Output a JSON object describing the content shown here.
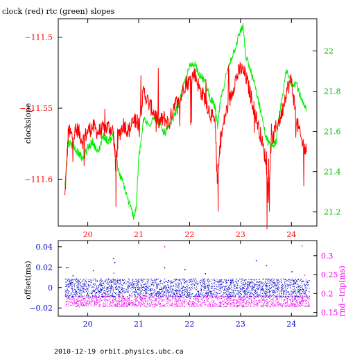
{
  "colors": {
    "clock": "#ff0000",
    "rtc": "#00ee00",
    "offset": "#0000cc",
    "rndtrip": "#ee00ee",
    "axis": "#000000"
  },
  "footer": {
    "text": "2010-12-19  orbit.physics.ubc.ca"
  },
  "chart_data": [
    {
      "type": "line",
      "title": "clock (red) rtc (green) slopes",
      "ylabel": "clockslope",
      "xlabel": "",
      "xlim": [
        19.42,
        24.5
      ],
      "xticks": [
        20,
        21,
        22,
        23,
        24
      ],
      "xtick_labels": [
        "20",
        "21",
        "22",
        "23",
        "24"
      ],
      "grid": false,
      "y_left": {
        "ylim": [
          -111.633,
          -111.487
        ],
        "ticks": [
          -111.5,
          -111.55,
          -111.6
        ],
        "tick_labels": [
          "−111.5",
          "−111.55",
          "−111.6"
        ]
      },
      "y_right": {
        "ylim": [
          21.13,
          22.16
        ],
        "ticks": [
          22,
          21.8,
          21.6,
          21.4,
          21.2
        ],
        "tick_labels": [
          "22",
          "21.8",
          "21.6",
          "21.4",
          "21.2"
        ]
      },
      "series": [
        {
          "color_key": "clock",
          "axis": "left",
          "x": [
            19.55,
            19.62,
            19.7,
            19.8,
            19.9,
            20.0,
            20.1,
            20.2,
            20.3,
            20.4,
            20.5,
            20.55,
            20.6,
            20.7,
            20.8,
            20.9,
            20.95,
            21.0,
            21.1,
            21.2,
            21.3,
            21.4,
            21.5,
            21.6,
            21.7,
            21.8,
            21.9,
            22.0,
            22.1,
            22.2,
            22.3,
            22.4,
            22.5,
            22.55,
            22.6,
            22.7,
            22.8,
            22.9,
            23.0,
            23.1,
            23.2,
            23.3,
            23.4,
            23.5,
            23.55,
            23.6,
            23.7,
            23.8,
            23.9,
            24.0,
            24.1,
            24.2,
            24.3
          ],
          "values": [
            -111.613,
            -111.566,
            -111.57,
            -111.565,
            -111.573,
            -111.566,
            -111.563,
            -111.567,
            -111.565,
            -111.563,
            -111.566,
            -111.591,
            -111.57,
            -111.561,
            -111.566,
            -111.56,
            -111.558,
            -111.561,
            -111.538,
            -111.547,
            -111.553,
            -111.56,
            -111.557,
            -111.561,
            -111.546,
            -111.547,
            -111.533,
            -111.531,
            -111.525,
            -111.537,
            -111.543,
            -111.553,
            -111.561,
            -111.604,
            -111.575,
            -111.555,
            -111.543,
            -111.53,
            -111.522,
            -111.527,
            -111.541,
            -111.555,
            -111.57,
            -111.587,
            -111.615,
            -111.576,
            -111.563,
            -111.555,
            -111.538,
            -111.53,
            -111.559,
            -111.573,
            -111.581
          ]
        },
        {
          "color_key": "rtc",
          "axis": "right",
          "x": [
            19.55,
            19.62,
            19.7,
            19.8,
            19.9,
            20.0,
            20.1,
            20.2,
            20.3,
            20.4,
            20.5,
            20.6,
            20.7,
            20.8,
            20.9,
            20.95,
            21.0,
            21.1,
            21.2,
            21.3,
            21.4,
            21.5,
            21.6,
            21.7,
            21.8,
            21.9,
            22.0,
            22.1,
            22.2,
            22.3,
            22.4,
            22.5,
            22.55,
            22.6,
            22.7,
            22.8,
            22.9,
            23.0,
            23.05,
            23.1,
            23.2,
            23.3,
            23.4,
            23.5,
            23.6,
            23.7,
            23.8,
            23.9,
            24.0,
            24.1,
            24.2,
            24.3
          ],
          "values": [
            21.34,
            21.55,
            21.53,
            21.5,
            21.46,
            21.52,
            21.55,
            21.49,
            21.58,
            21.55,
            21.58,
            21.4,
            21.34,
            21.25,
            21.18,
            21.22,
            21.46,
            21.66,
            21.63,
            21.68,
            21.64,
            21.59,
            21.62,
            21.68,
            21.75,
            21.84,
            21.92,
            21.94,
            21.88,
            21.85,
            21.77,
            21.72,
            21.62,
            21.74,
            21.86,
            21.95,
            22.02,
            22.1,
            22.12,
            21.98,
            21.9,
            21.81,
            21.7,
            21.57,
            21.52,
            21.55,
            21.74,
            21.9,
            21.84,
            21.84,
            21.75,
            21.7
          ]
        }
      ]
    },
    {
      "type": "scatter",
      "title": "",
      "xlim": [
        19.42,
        24.5
      ],
      "xticks": [
        20,
        21,
        22,
        23,
        24
      ],
      "xtick_labels": [
        "20",
        "21",
        "22",
        "23",
        "24"
      ],
      "grid": false,
      "y_left": {
        "label": "offset(ms)",
        "ylim": [
          -0.028,
          0.046
        ],
        "ticks": [
          0.04,
          0.02,
          0,
          -0.02
        ],
        "tick_labels": [
          "0.04",
          "0.02",
          "0",
          "−0.02"
        ]
      },
      "y_right": {
        "label": "rnd−trip(ms)",
        "ylim": [
          0.14,
          0.34
        ],
        "ticks": [
          0.3,
          0.25,
          0.2,
          0.15
        ],
        "tick_labels": [
          "0.3",
          "0.25",
          "0.2",
          "0.15"
        ]
      },
      "series": [
        {
          "color_key": "offset",
          "axis": "left",
          "x_range": [
            19.55,
            24.35
          ],
          "band": [
            -0.009,
            0.009
          ],
          "outliers": [
            [
              19.57,
              0.02
            ],
            [
              19.7,
              0.012
            ],
            [
              20.5,
              0.029
            ],
            [
              20.52,
              0.025
            ],
            [
              20.1,
              0.017
            ],
            [
              21.5,
              0.02
            ],
            [
              21.9,
              0.018
            ],
            [
              22.3,
              0.014
            ],
            [
              23.3,
              0.027
            ],
            [
              23.5,
              0.022
            ],
            [
              24.0,
              0.016
            ],
            [
              20.8,
              -0.016
            ],
            [
              22.6,
              -0.018
            ]
          ]
        },
        {
          "color_key": "rndtrip",
          "axis": "right",
          "x_range": [
            19.55,
            24.35
          ],
          "band": [
            0.165,
            0.195
          ],
          "outliers": [
            [
              21.5,
              0.325
            ],
            [
              24.2,
              0.327
            ],
            [
              20.5,
              0.255
            ],
            [
              22.1,
              0.24
            ],
            [
              23.1,
              0.238
            ],
            [
              19.6,
              0.27
            ],
            [
              24.25,
              0.25
            ]
          ]
        }
      ]
    }
  ]
}
